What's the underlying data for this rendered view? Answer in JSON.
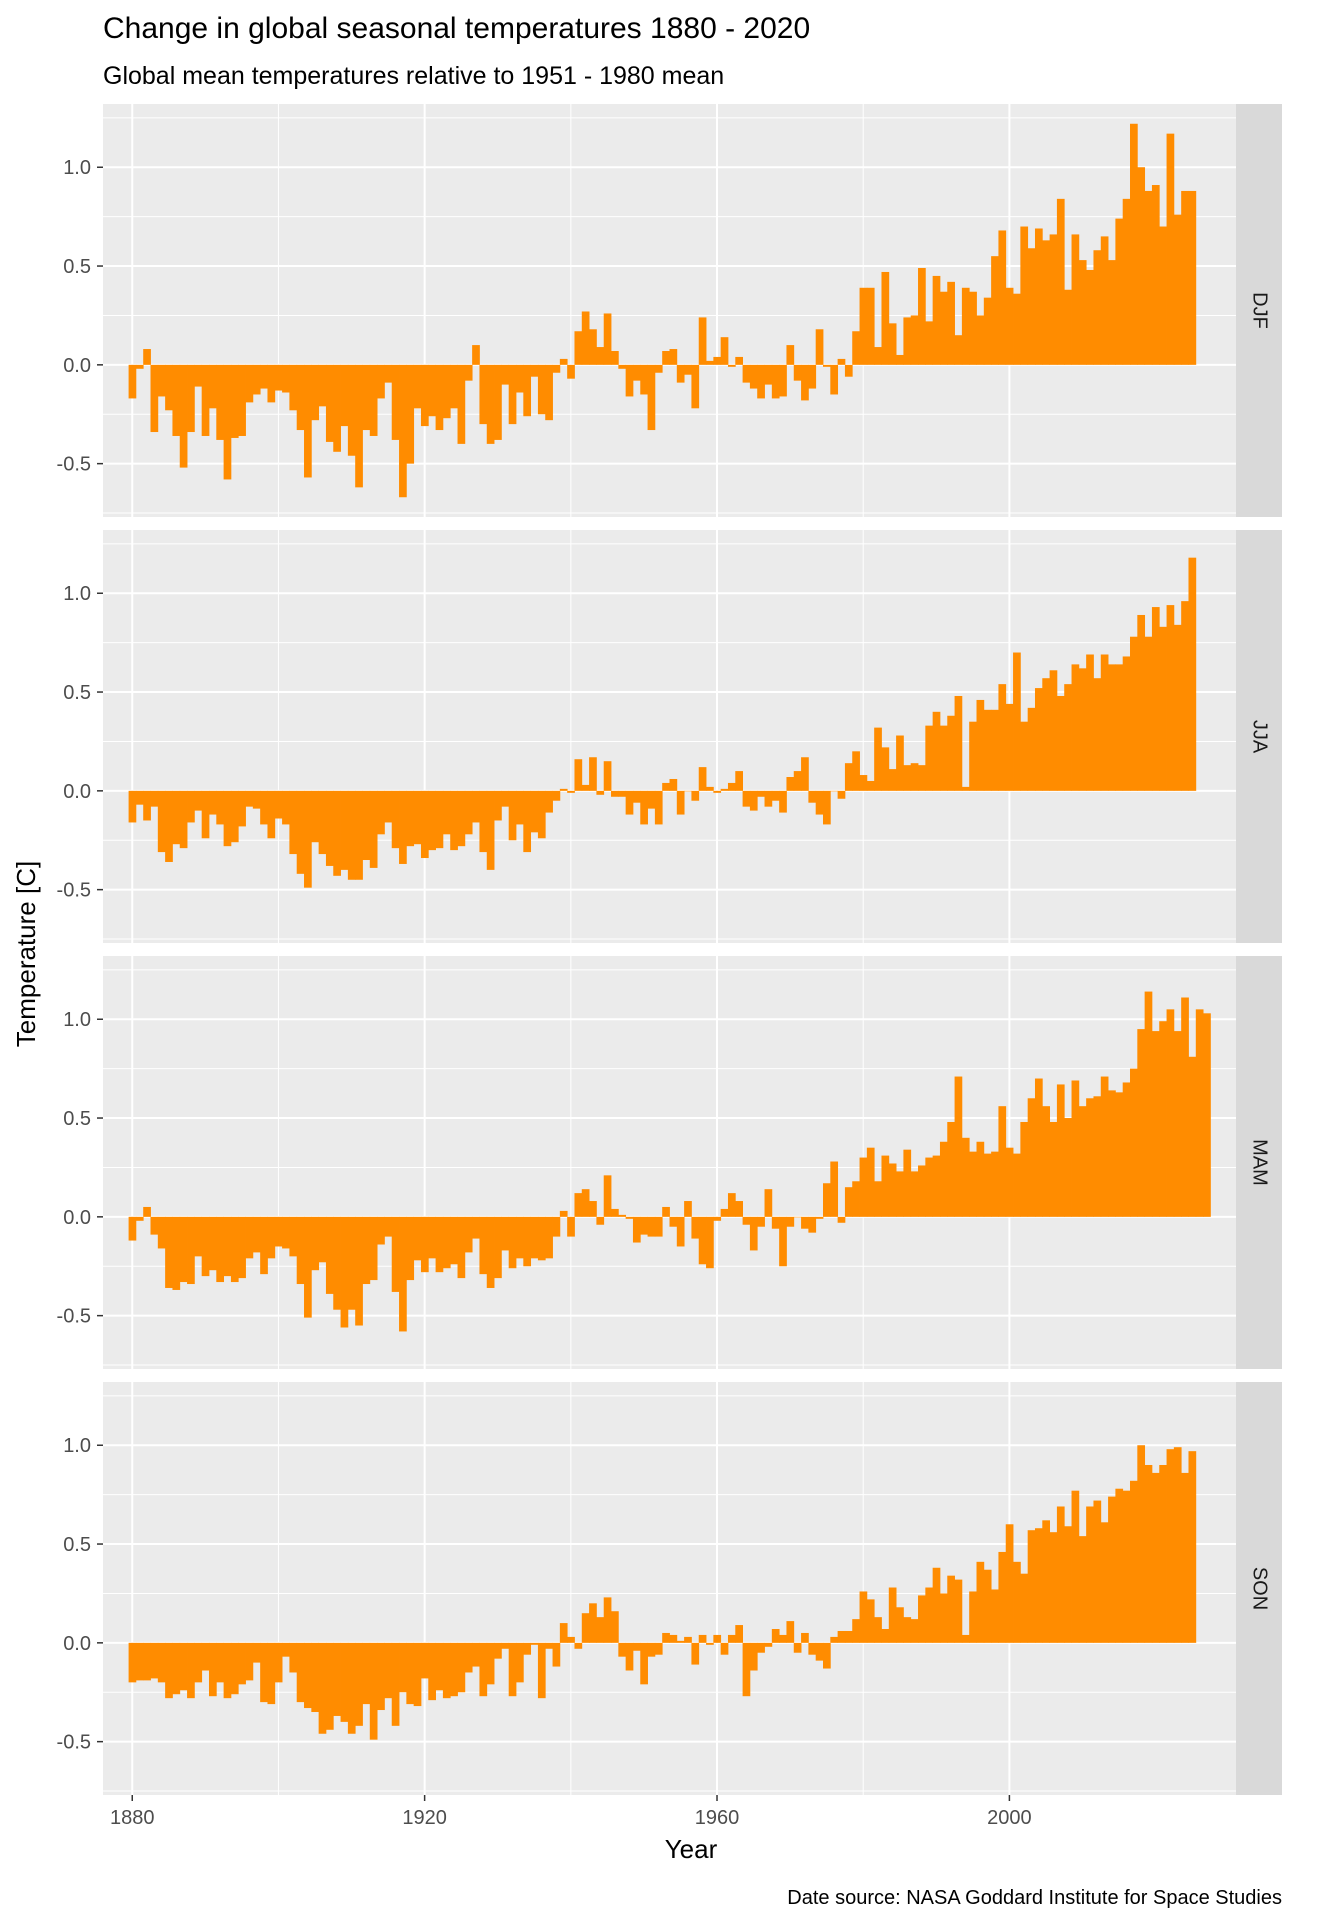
{
  "header": {
    "title": "Change in global seasonal temperatures 1880 - 2020",
    "subtitle": "Global mean temperatures relative to 1951 - 1980 mean"
  },
  "caption": "Date source: NASA Goddard Institute for Space Studies",
  "colors": {
    "bar": "#FF8C00",
    "panel_bg": "#EBEBEB",
    "strip_bg": "#D9D9D9",
    "grid": "#FFFFFF"
  },
  "chart_data": {
    "type": "bar",
    "facet_by": "season",
    "xlabel": "Year",
    "ylabel": "Temperature [C]",
    "xlim": [
      1876,
      2031
    ],
    "ylim": [
      -0.77,
      1.32
    ],
    "x_ticks": [
      1880,
      1920,
      1960,
      2000
    ],
    "y_ticks": [
      -0.5,
      0.0,
      0.5,
      1.0
    ],
    "y_tick_labels": [
      "-0.5",
      "0.0",
      "0.5",
      "1.0"
    ],
    "grid": true,
    "legend": "none",
    "start_year": 1880,
    "panels": [
      {
        "season": "DJF",
        "values": [
          -0.17,
          -0.02,
          0.08,
          -0.34,
          -0.16,
          -0.23,
          -0.36,
          -0.52,
          -0.34,
          -0.11,
          -0.36,
          -0.22,
          -0.38,
          -0.58,
          -0.37,
          -0.36,
          -0.19,
          -0.15,
          -0.12,
          -0.19,
          -0.13,
          -0.14,
          -0.23,
          -0.33,
          -0.57,
          -0.28,
          -0.21,
          -0.39,
          -0.44,
          -0.31,
          -0.46,
          -0.62,
          -0.33,
          -0.36,
          -0.17,
          -0.09,
          -0.38,
          -0.67,
          -0.5,
          -0.22,
          -0.31,
          -0.26,
          -0.33,
          -0.27,
          -0.22,
          -0.4,
          -0.08,
          0.1,
          -0.3,
          -0.4,
          -0.38,
          -0.1,
          -0.3,
          -0.14,
          -0.26,
          -0.06,
          -0.25,
          -0.28,
          -0.04,
          0.03,
          -0.07,
          0.17,
          0.27,
          0.18,
          0.09,
          0.26,
          0.07,
          -0.02,
          -0.16,
          -0.08,
          -0.15,
          -0.33,
          -0.04,
          0.07,
          0.08,
          -0.09,
          -0.05,
          -0.22,
          0.24,
          0.02,
          0.04,
          0.14,
          -0.01,
          0.04,
          -0.09,
          -0.12,
          -0.17,
          -0.1,
          -0.17,
          -0.16,
          0.1,
          -0.08,
          -0.18,
          -0.12,
          0.18,
          -0.01,
          -0.15,
          0.03,
          -0.06,
          0.17,
          0.39,
          0.39,
          0.09,
          0.47,
          0.21,
          0.05,
          0.24,
          0.25,
          0.49,
          0.22,
          0.45,
          0.37,
          0.42,
          0.15,
          0.39,
          0.37,
          0.25,
          0.34,
          0.55,
          0.68,
          0.39,
          0.36,
          0.7,
          0.59,
          0.69,
          0.63,
          0.66,
          0.84,
          0.38,
          0.66,
          0.53,
          0.48,
          0.58,
          0.65,
          0.53,
          0.74,
          0.84,
          1.22,
          1.0,
          0.88,
          0.91,
          0.7,
          1.17,
          0.76,
          0.88,
          0.88
        ]
      },
      {
        "season": "JJA",
        "values": [
          -0.16,
          -0.07,
          -0.15,
          -0.08,
          -0.31,
          -0.36,
          -0.27,
          -0.29,
          -0.16,
          -0.1,
          -0.24,
          -0.12,
          -0.17,
          -0.28,
          -0.26,
          -0.18,
          -0.08,
          -0.09,
          -0.17,
          -0.24,
          -0.14,
          -0.17,
          -0.32,
          -0.42,
          -0.49,
          -0.26,
          -0.32,
          -0.38,
          -0.43,
          -0.4,
          -0.45,
          -0.45,
          -0.35,
          -0.39,
          -0.22,
          -0.16,
          -0.29,
          -0.37,
          -0.28,
          -0.27,
          -0.34,
          -0.3,
          -0.29,
          -0.22,
          -0.3,
          -0.28,
          -0.22,
          -0.16,
          -0.31,
          -0.4,
          -0.15,
          -0.08,
          -0.25,
          -0.17,
          -0.31,
          -0.21,
          -0.24,
          -0.11,
          -0.05,
          0.01,
          -0.01,
          0.16,
          0.03,
          0.17,
          -0.02,
          0.15,
          -0.03,
          -0.03,
          -0.12,
          -0.06,
          -0.17,
          -0.09,
          -0.17,
          0.04,
          0.06,
          -0.12,
          0.0,
          -0.05,
          0.12,
          0.02,
          -0.01,
          0.01,
          0.04,
          0.1,
          -0.08,
          -0.1,
          -0.03,
          -0.08,
          -0.05,
          -0.11,
          0.07,
          0.1,
          0.17,
          -0.06,
          -0.12,
          -0.17,
          0.0,
          -0.04,
          0.14,
          0.2,
          0.08,
          0.05,
          0.32,
          0.22,
          0.11,
          0.28,
          0.13,
          0.14,
          0.13,
          0.33,
          0.4,
          0.33,
          0.38,
          0.48,
          0.02,
          0.35,
          0.46,
          0.41,
          0.41,
          0.54,
          0.44,
          0.7,
          0.35,
          0.42,
          0.52,
          0.57,
          0.61,
          0.48,
          0.54,
          0.64,
          0.62,
          0.69,
          0.57,
          0.69,
          0.64,
          0.64,
          0.68,
          0.78,
          0.89,
          0.78,
          0.93,
          0.83,
          0.94,
          0.84,
          0.96,
          1.18
        ]
      },
      {
        "season": "MAM",
        "values": [
          -0.12,
          -0.02,
          0.05,
          -0.09,
          -0.16,
          -0.36,
          -0.37,
          -0.33,
          -0.34,
          -0.2,
          -0.3,
          -0.27,
          -0.33,
          -0.3,
          -0.33,
          -0.31,
          -0.21,
          -0.18,
          -0.29,
          -0.21,
          -0.15,
          -0.16,
          -0.2,
          -0.34,
          -0.51,
          -0.27,
          -0.23,
          -0.39,
          -0.47,
          -0.56,
          -0.47,
          -0.55,
          -0.34,
          -0.32,
          -0.14,
          -0.1,
          -0.38,
          -0.58,
          -0.32,
          -0.22,
          -0.28,
          -0.21,
          -0.28,
          -0.26,
          -0.24,
          -0.31,
          -0.18,
          -0.11,
          -0.29,
          -0.36,
          -0.31,
          -0.17,
          -0.26,
          -0.21,
          -0.25,
          -0.21,
          -0.22,
          -0.21,
          -0.1,
          0.03,
          -0.1,
          0.12,
          0.14,
          0.08,
          -0.04,
          0.21,
          0.04,
          0.01,
          -0.01,
          -0.13,
          -0.09,
          -0.1,
          -0.1,
          0.05,
          -0.05,
          -0.15,
          0.08,
          -0.11,
          -0.24,
          -0.26,
          -0.02,
          0.04,
          0.12,
          0.08,
          -0.04,
          -0.17,
          -0.05,
          0.14,
          -0.06,
          -0.25,
          -0.05,
          0.0,
          -0.06,
          -0.08,
          -0.01,
          0.17,
          0.28,
          -0.03,
          0.15,
          0.18,
          0.3,
          0.35,
          0.18,
          0.31,
          0.27,
          0.23,
          0.34,
          0.23,
          0.26,
          0.3,
          0.31,
          0.38,
          0.48,
          0.71,
          0.4,
          0.33,
          0.38,
          0.32,
          0.33,
          0.56,
          0.35,
          0.32,
          0.48,
          0.6,
          0.7,
          0.56,
          0.48,
          0.67,
          0.5,
          0.69,
          0.56,
          0.6,
          0.61,
          0.71,
          0.64,
          0.63,
          0.68,
          0.75,
          0.95,
          1.14,
          0.94,
          0.99,
          1.05,
          0.94,
          1.11,
          0.81,
          1.05,
          1.03
        ]
      },
      {
        "season": "SON",
        "values": [
          -0.2,
          -0.19,
          -0.19,
          -0.18,
          -0.2,
          -0.28,
          -0.26,
          -0.24,
          -0.28,
          -0.2,
          -0.14,
          -0.27,
          -0.2,
          -0.28,
          -0.26,
          -0.21,
          -0.19,
          -0.1,
          -0.3,
          -0.31,
          -0.2,
          -0.07,
          -0.15,
          -0.3,
          -0.33,
          -0.35,
          -0.46,
          -0.44,
          -0.37,
          -0.4,
          -0.46,
          -0.42,
          -0.31,
          -0.49,
          -0.34,
          -0.28,
          -0.42,
          -0.25,
          -0.31,
          -0.32,
          -0.18,
          -0.29,
          -0.24,
          -0.28,
          -0.27,
          -0.25,
          -0.15,
          -0.12,
          -0.27,
          -0.21,
          -0.08,
          -0.03,
          -0.27,
          -0.2,
          -0.06,
          -0.01,
          -0.28,
          -0.03,
          -0.12,
          0.1,
          0.03,
          -0.03,
          0.15,
          0.2,
          0.13,
          0.23,
          0.16,
          -0.07,
          -0.14,
          -0.04,
          -0.21,
          -0.07,
          -0.06,
          0.05,
          0.04,
          0.01,
          0.03,
          -0.11,
          0.04,
          -0.01,
          0.04,
          -0.06,
          0.04,
          0.09,
          -0.27,
          -0.14,
          -0.05,
          -0.02,
          0.07,
          0.04,
          0.11,
          -0.05,
          0.05,
          -0.06,
          -0.09,
          -0.13,
          0.03,
          0.06,
          0.06,
          0.12,
          0.26,
          0.22,
          0.13,
          0.07,
          0.28,
          0.18,
          0.13,
          0.12,
          0.24,
          0.28,
          0.38,
          0.25,
          0.34,
          0.32,
          0.04,
          0.26,
          0.41,
          0.37,
          0.27,
          0.46,
          0.6,
          0.41,
          0.35,
          0.57,
          0.58,
          0.62,
          0.56,
          0.69,
          0.59,
          0.77,
          0.54,
          0.69,
          0.72,
          0.61,
          0.74,
          0.78,
          0.77,
          0.82,
          1.0,
          0.9,
          0.86,
          0.9,
          0.98,
          0.99,
          0.86,
          0.97
        ]
      }
    ]
  }
}
